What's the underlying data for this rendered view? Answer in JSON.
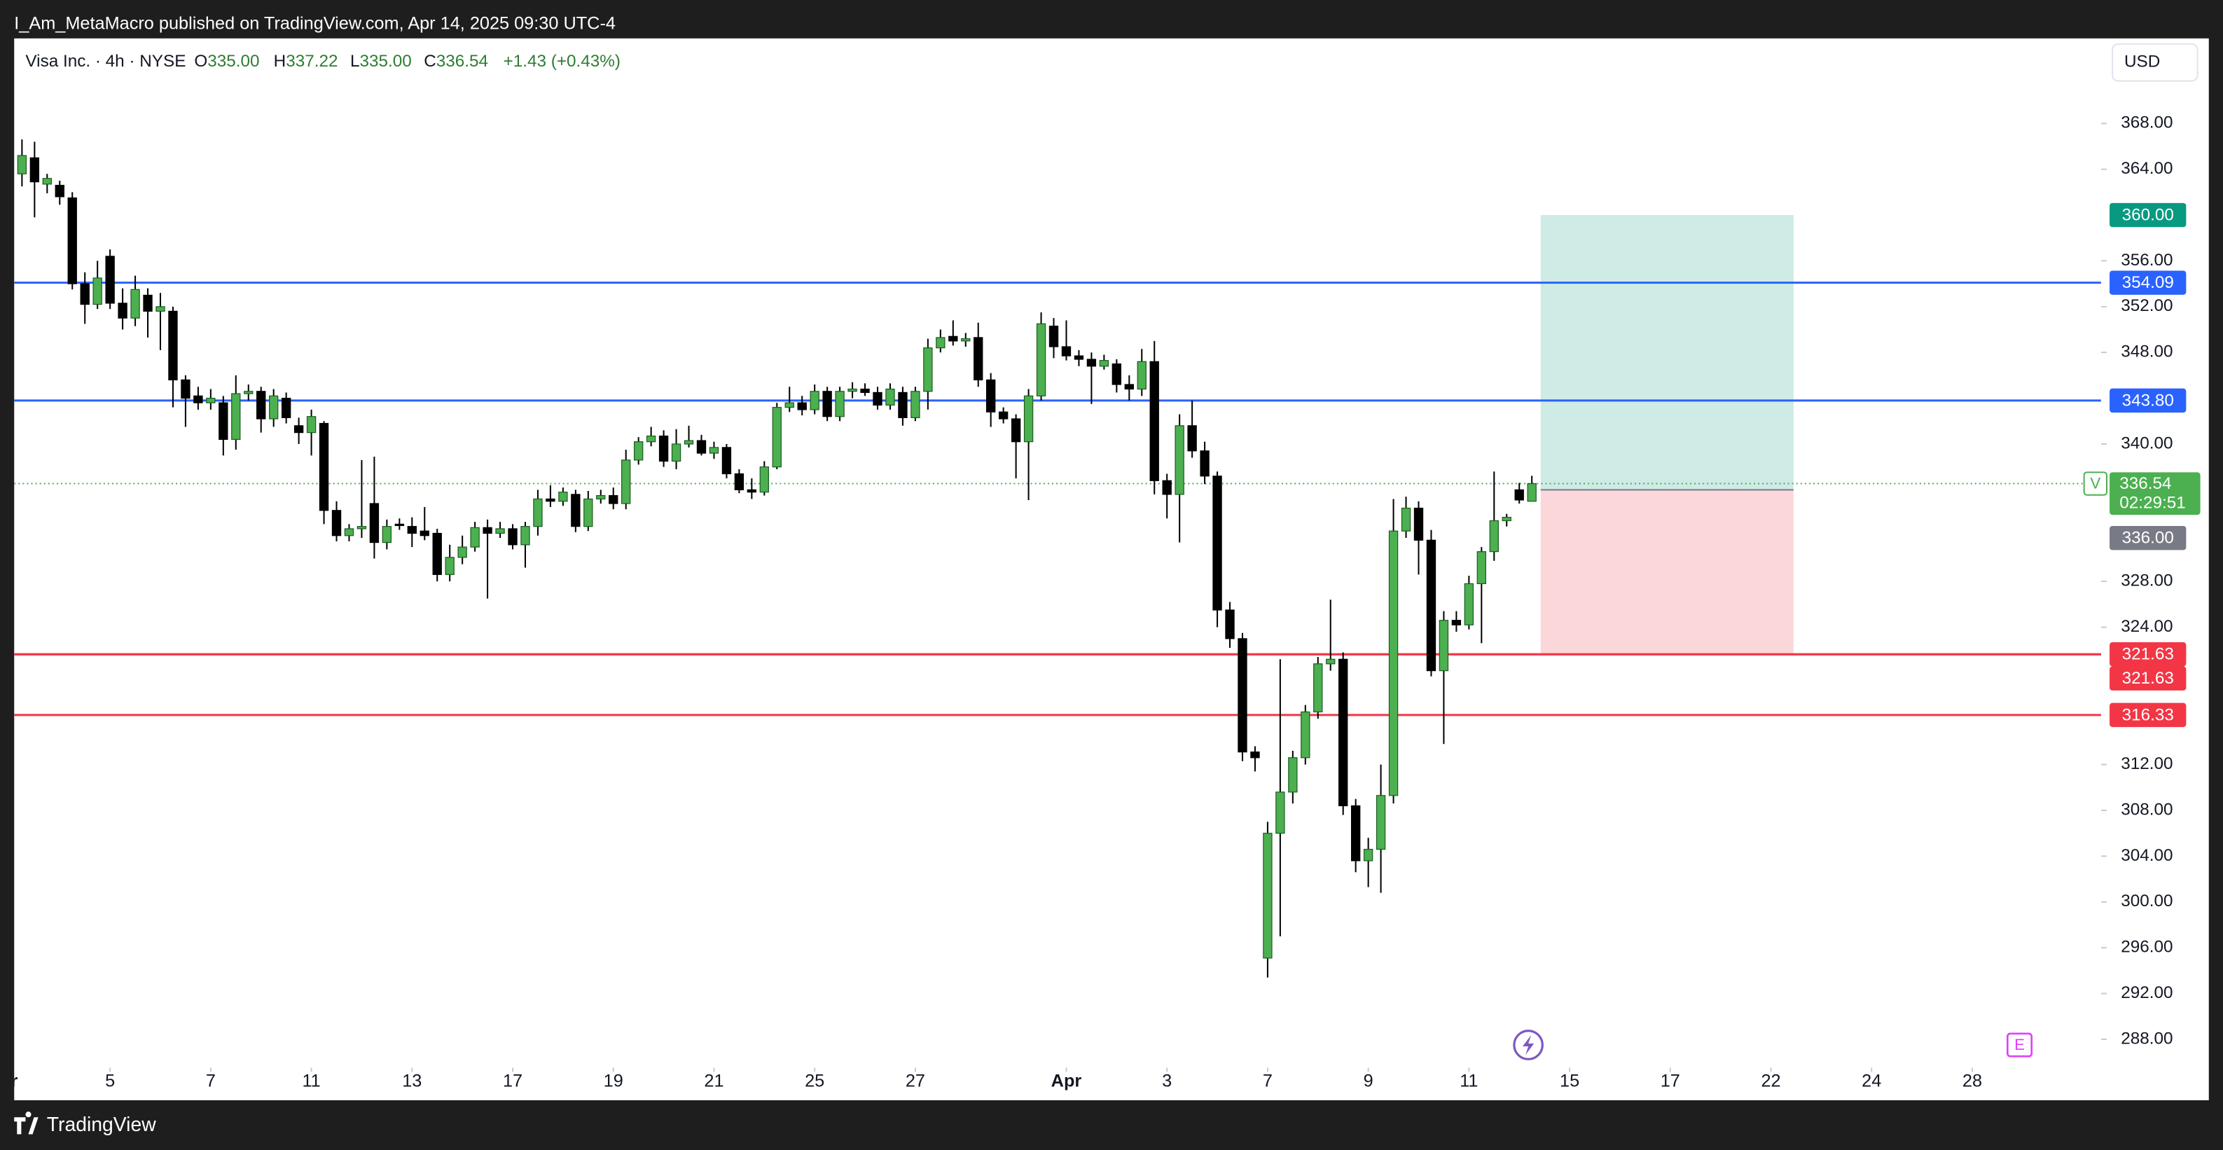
{
  "header": {
    "published": "I_Am_MetaMacro published on TradingView.com, Apr 14, 2025 09:30 UTC-4",
    "brand": "TradingView"
  },
  "chart_data": {
    "type": "candlestick",
    "symbol_title": "Visa Inc. · 4h · NYSE",
    "ohlc_legend": [
      {
        "key": "O",
        "value": "335.00"
      },
      {
        "key": "H",
        "value": "337.22"
      },
      {
        "key": "L",
        "value": "335.00"
      },
      {
        "key": "C",
        "value": "336.54"
      }
    ],
    "change": "+1.43 (+0.43%)",
    "currency": "USD",
    "symbol_tag": "V",
    "countdown": "02:29:51",
    "up_color": "#4caf50",
    "down_color": "#000000",
    "grid": false,
    "open": [
      363.6,
      365.0,
      362.7,
      362.6,
      361.5,
      354.0,
      352.2,
      356.4,
      352.3,
      351.0,
      353.0,
      351.6,
      351.6,
      345.6,
      344.2,
      343.6,
      343.6,
      340.4,
      344.4,
      344.6,
      342.2,
      344.0,
      341.6,
      341.0,
      341.8,
      334.2,
      332.0,
      332.6,
      334.8,
      331.4,
      333.0,
      332.8,
      332.4,
      332.2,
      328.6,
      330.1,
      331.0,
      332.7,
      332.2,
      332.6,
      331.2,
      332.8,
      335.2,
      335.0,
      335.6,
      332.8,
      335.2,
      335.5,
      334.8,
      338.6,
      340.2,
      340.7,
      338.5,
      340.0,
      340.3,
      339.2,
      339.7,
      337.4,
      336.0,
      335.8,
      338.0,
      343.2,
      343.6,
      343.0,
      344.6,
      342.4,
      344.6,
      344.8,
      344.5,
      343.4,
      344.5,
      342.3,
      344.6,
      348.4,
      349.4,
      349.0,
      349.3,
      345.6,
      342.8,
      342.2,
      340.2,
      344.2,
      350.3,
      348.5,
      347.7,
      347.4,
      346.8,
      347.0,
      345.2,
      344.8,
      347.2,
      336.8,
      335.6,
      341.6,
      339.4,
      337.2,
      325.5,
      323.0,
      313.1,
      295.1,
      306.0,
      309.6,
      312.6,
      316.6,
      320.8,
      321.2,
      308.4,
      303.6,
      304.6,
      309.3,
      332.4,
      334.4,
      331.6,
      320.2,
      324.6,
      324.2,
      327.8,
      330.6,
      333.3,
      336.0,
      335.0
    ],
    "high": [
      366.6,
      366.4,
      363.6,
      363.0,
      362.0,
      355.0,
      356.0,
      357.0,
      353.6,
      354.7,
      353.6,
      353.2,
      352.0,
      346.0,
      345.0,
      344.8,
      344.2,
      346.0,
      345.2,
      345.0,
      344.8,
      344.5,
      342.3,
      343.0,
      342.0,
      335.0,
      333.0,
      338.6,
      338.9,
      333.4,
      333.5,
      333.6,
      334.5,
      332.6,
      331.2,
      332.0,
      333.2,
      333.4,
      333.2,
      333.0,
      333.2,
      336.0,
      336.4,
      336.2,
      336.0,
      335.9,
      336.0,
      336.2,
      339.5,
      340.6,
      341.5,
      341.2,
      341.3,
      341.6,
      340.8,
      340.2,
      340.0,
      337.8,
      337.0,
      338.5,
      343.6,
      345.0,
      344.2,
      345.2,
      345.0,
      345.0,
      345.4,
      345.3,
      345.0,
      345.3,
      345.0,
      345.0,
      349.2,
      350.0,
      350.8,
      349.7,
      350.6,
      346.2,
      343.2,
      342.6,
      344.8,
      351.5,
      351.0,
      350.8,
      348.2,
      348.0,
      347.8,
      347.4,
      346.0,
      348.3,
      349.0,
      337.4,
      342.6,
      343.8,
      340.2,
      337.6,
      326.2,
      323.5,
      313.6,
      307.0,
      321.2,
      313.2,
      317.2,
      321.4,
      326.4,
      321.8,
      309.0,
      305.6,
      312.0,
      335.2,
      335.4,
      335.0,
      332.5,
      325.4,
      325.4,
      328.5,
      331.0,
      337.6,
      333.9,
      336.6,
      337.22
    ],
    "low": [
      362.5,
      359.8,
      361.9,
      360.9,
      353.5,
      350.5,
      351.8,
      351.8,
      350.0,
      350.3,
      349.3,
      348.2,
      343.2,
      341.5,
      343.0,
      343.0,
      339.0,
      339.5,
      343.8,
      341.0,
      341.5,
      341.8,
      340.0,
      339.0,
      333.0,
      331.5,
      331.5,
      331.8,
      330.0,
      330.8,
      332.5,
      331.0,
      331.6,
      328.0,
      328.0,
      329.5,
      330.6,
      326.5,
      331.8,
      330.8,
      329.2,
      332.0,
      334.5,
      334.6,
      332.3,
      332.4,
      334.8,
      334.3,
      334.3,
      338.2,
      339.8,
      338.0,
      337.8,
      339.7,
      339.0,
      338.7,
      337.0,
      335.7,
      335.2,
      335.5,
      337.8,
      342.8,
      342.5,
      342.6,
      342.0,
      342.0,
      344.0,
      344.2,
      343.0,
      343.0,
      341.6,
      342.0,
      343.0,
      348.0,
      348.6,
      348.5,
      345.0,
      341.5,
      341.8,
      337.0,
      335.1,
      343.8,
      347.5,
      347.3,
      346.8,
      343.5,
      346.5,
      344.5,
      343.8,
      344.2,
      335.6,
      333.5,
      331.4,
      338.8,
      336.5,
      324.0,
      322.2,
      312.3,
      311.4,
      293.4,
      297.0,
      308.6,
      312.0,
      316.0,
      320.2,
      307.6,
      302.6,
      301.3,
      300.8,
      308.6,
      331.8,
      328.6,
      319.7,
      313.8,
      323.6,
      323.8,
      322.6,
      329.8,
      332.8,
      334.8,
      335.0
    ],
    "close": [
      365.2,
      362.9,
      363.2,
      361.6,
      354.0,
      352.2,
      354.5,
      352.3,
      351.0,
      353.5,
      351.6,
      352.0,
      345.6,
      344.0,
      343.6,
      344.0,
      340.4,
      344.4,
      344.6,
      342.2,
      344.2,
      342.3,
      341.0,
      342.4,
      334.2,
      332.0,
      332.6,
      332.8,
      331.4,
      332.8,
      332.9,
      332.2,
      332.0,
      328.6,
      330.1,
      331.0,
      332.7,
      332.2,
      332.6,
      331.2,
      332.8,
      335.2,
      335.0,
      335.8,
      332.8,
      335.2,
      335.5,
      334.8,
      338.6,
      340.2,
      340.7,
      338.5,
      340.0,
      340.3,
      339.2,
      339.7,
      337.4,
      336.0,
      335.8,
      338.0,
      343.2,
      343.6,
      343.0,
      344.6,
      342.4,
      344.6,
      344.8,
      344.5,
      343.4,
      344.8,
      342.3,
      344.6,
      348.4,
      349.3,
      349.0,
      349.2,
      345.6,
      342.8,
      342.2,
      340.2,
      344.2,
      350.5,
      348.5,
      347.7,
      347.4,
      346.8,
      347.3,
      345.2,
      344.8,
      347.2,
      336.8,
      335.6,
      341.6,
      339.4,
      337.2,
      325.5,
      323.0,
      313.1,
      312.6,
      306.0,
      309.6,
      312.6,
      316.6,
      320.8,
      321.2,
      308.4,
      303.6,
      304.6,
      309.3,
      332.4,
      334.4,
      331.6,
      320.2,
      324.6,
      324.2,
      327.8,
      330.6,
      333.3,
      333.6,
      335.11,
      336.54
    ],
    "xlim": [
      -0.62,
      165.24
    ],
    "xticks": [
      {
        "value": -1,
        "label": "ar"
      },
      {
        "value": 7,
        "label": "5"
      },
      {
        "value": 15,
        "label": "7"
      },
      {
        "value": 23,
        "label": "11"
      },
      {
        "value": 31,
        "label": "13"
      },
      {
        "value": 39,
        "label": "17"
      },
      {
        "value": 47,
        "label": "19"
      },
      {
        "value": 55,
        "label": "21"
      },
      {
        "value": 63,
        "label": "25"
      },
      {
        "value": 71,
        "label": "27"
      },
      {
        "value": 83,
        "label": "Apr"
      },
      {
        "value": 91,
        "label": "3"
      },
      {
        "value": 99,
        "label": "7"
      },
      {
        "value": 107,
        "label": "9"
      },
      {
        "value": 115,
        "label": "11"
      },
      {
        "value": 123,
        "label": "15"
      },
      {
        "value": 131,
        "label": "17"
      },
      {
        "value": 139,
        "label": "22"
      },
      {
        "value": 147,
        "label": "24"
      },
      {
        "value": 155,
        "label": "28"
      }
    ],
    "ylim": [
      285.65,
      375.43
    ],
    "yticks": [
      {
        "value": 288,
        "label": "288.00"
      },
      {
        "value": 292,
        "label": "292.00"
      },
      {
        "value": 296,
        "label": "296.00"
      },
      {
        "value": 300,
        "label": "300.00"
      },
      {
        "value": 304,
        "label": "304.00"
      },
      {
        "value": 308,
        "label": "308.00"
      },
      {
        "value": 312,
        "label": "312.00"
      },
      {
        "value": 324,
        "label": "324.00"
      },
      {
        "value": 328,
        "label": "328.00"
      },
      {
        "value": 340,
        "label": "340.00"
      },
      {
        "value": 348,
        "label": "348.00"
      },
      {
        "value": 352,
        "label": "352.00"
      },
      {
        "value": 356,
        "label": "356.00"
      },
      {
        "value": 364,
        "label": "364.00"
      },
      {
        "value": 368,
        "label": "368.00"
      }
    ],
    "levels": [
      {
        "value": 354.09,
        "color": "#2962ff"
      },
      {
        "value": 343.8,
        "label": "343.80",
        "color": "#2962ff"
      },
      {
        "value": 321.63,
        "color": "#f23645"
      },
      {
        "value": 321.63,
        "color": "#f23645"
      },
      {
        "value": 316.33,
        "color": "#f23645"
      }
    ],
    "position": {
      "type": "long",
      "x_start": 120.7,
      "x_end": 140.8,
      "entry": {
        "value": 336,
        "label": "336.00"
      },
      "target": {
        "value": 360,
        "label": "360.00"
      },
      "stop": 321.63
    }
  }
}
